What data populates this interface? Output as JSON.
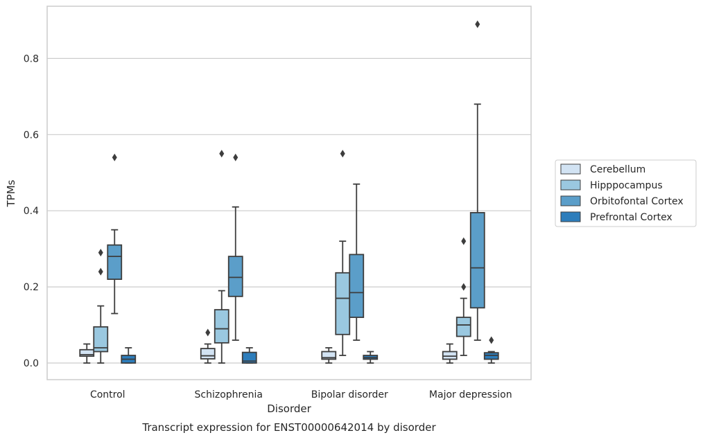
{
  "chart_data": {
    "type": "box",
    "caption": "Transcript expression for ENST00000642014 by disorder",
    "xlabel": "Disorder",
    "ylabel": "TPMs",
    "ylim": [
      -0.045,
      0.935
    ],
    "yticks": [
      0.0,
      0.2,
      0.4,
      0.6,
      0.8
    ],
    "ytick_labels": [
      "0.0",
      "0.2",
      "0.4",
      "0.6",
      "0.8"
    ],
    "grid": "horizontal",
    "legend_position": "right",
    "categories": [
      "Control",
      "Schizophrenia",
      "Bipolar disorder",
      "Major depression"
    ],
    "series": [
      {
        "name": "Cerebellum",
        "color": "#d2e3f3",
        "boxes": [
          {
            "whislo": 0.0,
            "q1": 0.018,
            "med": 0.022,
            "q3": 0.035,
            "whishi": 0.05,
            "fliers": []
          },
          {
            "whislo": 0.0,
            "q1": 0.011,
            "med": 0.019,
            "q3": 0.038,
            "whishi": 0.05,
            "fliers": [
              0.08
            ]
          },
          {
            "whislo": 0.0,
            "q1": 0.01,
            "med": 0.014,
            "q3": 0.03,
            "whishi": 0.04,
            "fliers": []
          },
          {
            "whislo": 0.0,
            "q1": 0.01,
            "med": 0.018,
            "q3": 0.03,
            "whishi": 0.05,
            "fliers": []
          }
        ]
      },
      {
        "name": "Hipppocampus",
        "color": "#9ac8e0",
        "boxes": [
          {
            "whislo": 0.0,
            "q1": 0.03,
            "med": 0.04,
            "q3": 0.095,
            "whishi": 0.15,
            "fliers": [
              0.24,
              0.29
            ]
          },
          {
            "whislo": 0.0,
            "q1": 0.053,
            "med": 0.09,
            "q3": 0.14,
            "whishi": 0.19,
            "fliers": [
              0.55
            ]
          },
          {
            "whislo": 0.02,
            "q1": 0.075,
            "med": 0.17,
            "q3": 0.237,
            "whishi": 0.32,
            "fliers": [
              0.55
            ]
          },
          {
            "whislo": 0.02,
            "q1": 0.07,
            "med": 0.1,
            "q3": 0.12,
            "whishi": 0.17,
            "fliers": [
              0.2,
              0.32
            ]
          }
        ]
      },
      {
        "name": "Orbitofontal Cortex",
        "color": "#5b9ec9",
        "boxes": [
          {
            "whislo": 0.13,
            "q1": 0.22,
            "med": 0.28,
            "q3": 0.31,
            "whishi": 0.35,
            "fliers": [
              0.54
            ]
          },
          {
            "whislo": 0.06,
            "q1": 0.175,
            "med": 0.225,
            "q3": 0.28,
            "whishi": 0.41,
            "fliers": [
              0.54
            ]
          },
          {
            "whislo": 0.06,
            "q1": 0.12,
            "med": 0.185,
            "q3": 0.285,
            "whishi": 0.47,
            "fliers": []
          },
          {
            "whislo": 0.06,
            "q1": 0.145,
            "med": 0.25,
            "q3": 0.395,
            "whishi": 0.68,
            "fliers": [
              0.89
            ]
          }
        ]
      },
      {
        "name": "Prefrontal Cortex",
        "color": "#2d7dbb",
        "boxes": [
          {
            "whislo": 0.0,
            "q1": 0.0,
            "med": 0.01,
            "q3": 0.02,
            "whishi": 0.04,
            "fliers": []
          },
          {
            "whislo": 0.0,
            "q1": 0.0,
            "med": 0.005,
            "q3": 0.028,
            "whishi": 0.04,
            "fliers": []
          },
          {
            "whislo": 0.0,
            "q1": 0.01,
            "med": 0.014,
            "q3": 0.02,
            "whishi": 0.03,
            "fliers": []
          },
          {
            "whislo": 0.0,
            "q1": 0.01,
            "med": 0.02,
            "q3": 0.027,
            "whishi": 0.03,
            "fliers": [
              0.06
            ]
          }
        ]
      }
    ]
  }
}
